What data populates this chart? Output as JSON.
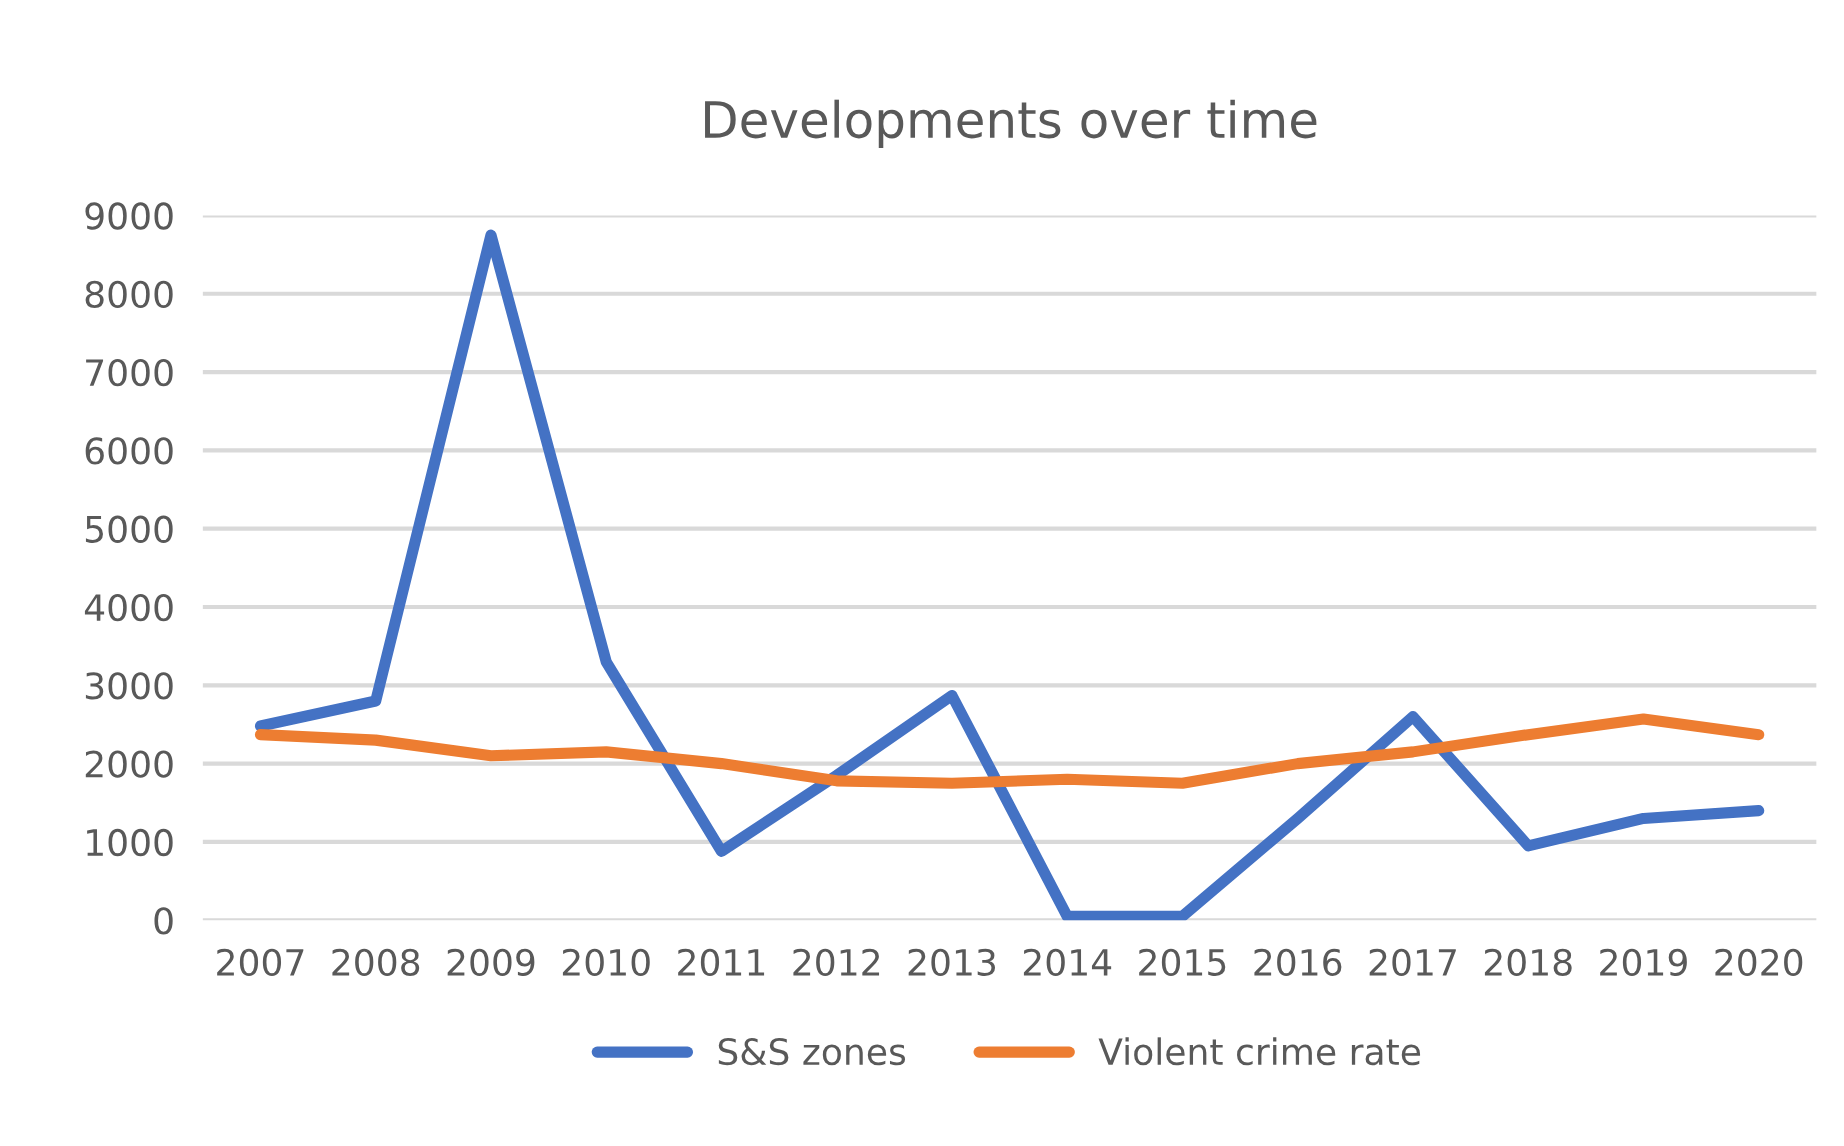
{
  "chart_data": {
    "type": "line",
    "title": "Developments over time",
    "categories": [
      "2007",
      "2008",
      "2009",
      "2010",
      "2011",
      "2012",
      "2013",
      "2014",
      "2015",
      "2016",
      "2017",
      "2018",
      "2019",
      "2020"
    ],
    "series": [
      {
        "name": "S&S zones",
        "color": "#4472c4",
        "values": [
          2480,
          2800,
          8750,
          3300,
          880,
          1850,
          2870,
          50,
          50,
          1300,
          2600,
          950,
          1300,
          1400
        ]
      },
      {
        "name": "Violent crime rate",
        "color": "#ed7d31",
        "values": [
          2370,
          2300,
          2100,
          2150,
          2000,
          1780,
          1750,
          1800,
          1750,
          2000,
          2150,
          2370,
          2570,
          2370
        ]
      }
    ],
    "ylim": [
      0,
      9000
    ],
    "yticks": [
      0,
      1000,
      2000,
      3000,
      4000,
      5000,
      6000,
      7000,
      8000,
      9000
    ],
    "grid": "y",
    "legend": "bottom",
    "marker": "none",
    "line_style": "solid"
  }
}
